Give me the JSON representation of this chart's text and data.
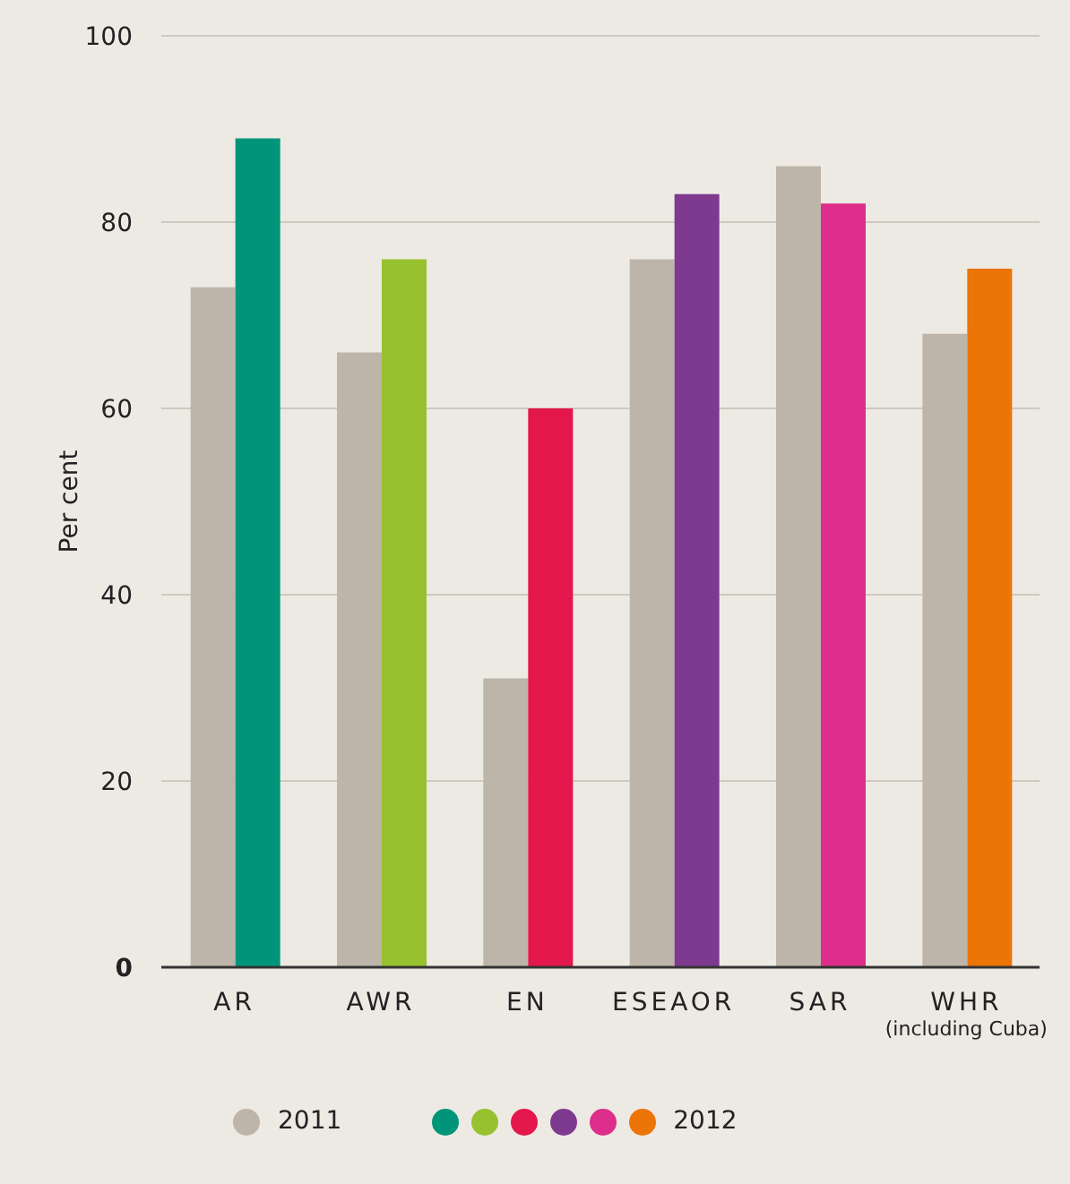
{
  "chart_data": {
    "type": "bar",
    "ylabel": "Per cent",
    "categories": [
      "AR",
      "AWR",
      "EN",
      "ESEAOR",
      "SAR",
      "WHR\n(including Cuba)"
    ],
    "series": [
      {
        "name": "2011",
        "color": "#bdb5a9",
        "values": [
          73,
          66,
          31,
          76,
          86,
          68
        ]
      },
      {
        "name": "2012",
        "colors": [
          "#00957a",
          "#97c12f",
          "#e3174b",
          "#7e3a8f",
          "#dc2e8a",
          "#ed7407"
        ],
        "values": [
          89,
          76,
          60,
          83,
          82,
          75
        ]
      }
    ],
    "ylim": [
      0,
      100
    ],
    "yticks": [
      0,
      20,
      40,
      60,
      80,
      100
    ],
    "grid": "y",
    "legend": "bottom"
  }
}
